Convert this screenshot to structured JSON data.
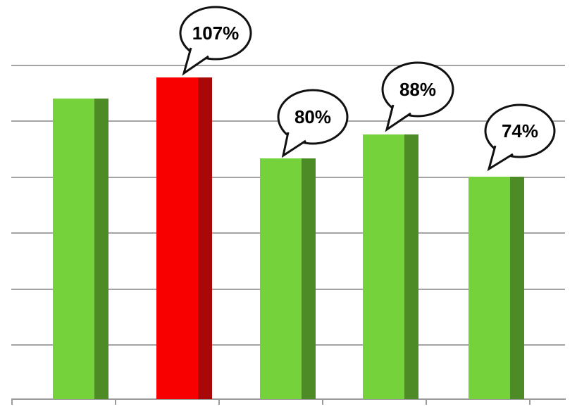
{
  "chart_data": {
    "type": "bar",
    "title": "",
    "xlabel": "",
    "ylabel": "",
    "categories": [
      "",
      "",
      "",
      "",
      ""
    ],
    "bars": [
      {
        "value": 100,
        "label": "",
        "color": "green"
      },
      {
        "value": 107,
        "label": "107%",
        "color": "red"
      },
      {
        "value": 80,
        "label": "80%",
        "color": "green"
      },
      {
        "value": 88,
        "label": "88%",
        "color": "green"
      },
      {
        "value": 74,
        "label": "74%",
        "color": "green"
      }
    ],
    "ylim": [
      0,
      111
    ],
    "grid": "horizontal gridlines, 6 above baseline, no y-axis tick labels",
    "legend_position": "none",
    "annotation_style": "white speech-bubble callouts with black outline pointing at bar tops; first bar unlabeled"
  },
  "colors": {
    "green": "#76D23B",
    "green_side": "#4D8B27",
    "red": "#F80000",
    "red_side": "#A90808",
    "gridline": "#A4A4A4",
    "axis": "#9B9B9B",
    "callout_fill": "#FFFFFF",
    "callout_border": "#111111",
    "label_text": "#000000"
  }
}
